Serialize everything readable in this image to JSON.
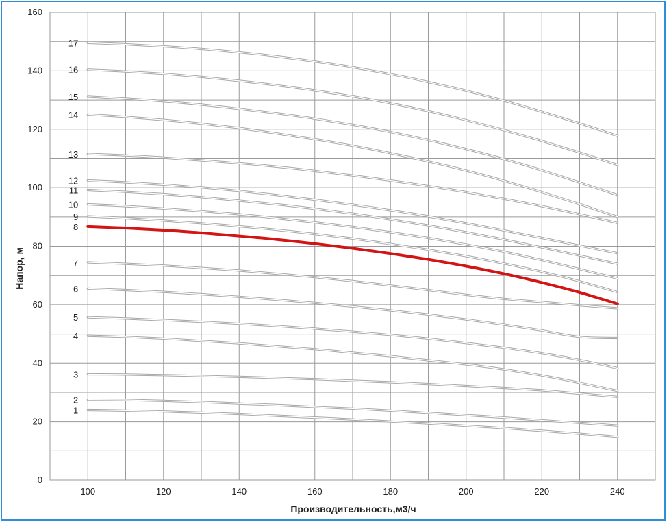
{
  "colors": {
    "frame": "#2f8fd6",
    "grid": "#9a9a9a",
    "curve": "#bdbdbd",
    "highlight": "#d21414",
    "text": "#222222"
  },
  "chart_data": {
    "type": "line",
    "title": "",
    "xlabel": "Производительность,м3/ч",
    "ylabel": "Напор, м",
    "xlim": [
      90,
      250
    ],
    "ylim": [
      0,
      160
    ],
    "x_ticks": [
      100,
      120,
      140,
      160,
      180,
      200,
      220,
      240
    ],
    "y_ticks": [
      0,
      20,
      40,
      60,
      80,
      100,
      120,
      140,
      160
    ],
    "grid": true,
    "legend": "none",
    "highlight_series": "8",
    "x": [
      100,
      110,
      120,
      130,
      140,
      150,
      160,
      170,
      180,
      190,
      200,
      210,
      220,
      230,
      240
    ],
    "series": [
      {
        "name": "1",
        "values": [
          24.0,
          23.8,
          23.5,
          23.1,
          22.6,
          22.0,
          21.4,
          20.8,
          20.1,
          19.4,
          18.6,
          17.8,
          16.9,
          15.9,
          14.8
        ]
      },
      {
        "name": "2",
        "values": [
          27.5,
          27.4,
          27.1,
          26.7,
          26.2,
          25.7,
          25.1,
          24.5,
          23.8,
          23.0,
          22.2,
          21.4,
          20.5,
          19.6,
          18.7
        ]
      },
      {
        "name": "3",
        "values": [
          36.2,
          36.1,
          35.9,
          35.6,
          35.3,
          34.9,
          34.5,
          34.0,
          33.5,
          32.9,
          32.2,
          31.5,
          30.7,
          29.6,
          28.5
        ]
      },
      {
        "name": "4",
        "values": [
          49.4,
          49.0,
          48.4,
          47.6,
          46.8,
          45.8,
          44.8,
          43.6,
          42.4,
          41.0,
          39.6,
          37.9,
          35.8,
          33.3,
          30.5
        ]
      },
      {
        "name": "5",
        "values": [
          55.7,
          55.3,
          54.8,
          54.2,
          53.5,
          52.7,
          51.8,
          50.8,
          49.7,
          48.4,
          46.9,
          45.3,
          43.4,
          41.1,
          38.3
        ]
      },
      {
        "name": "6",
        "values": [
          65.5,
          65.0,
          64.4,
          63.6,
          62.7,
          61.7,
          60.6,
          59.4,
          58.1,
          56.6,
          55.0,
          53.2,
          51.2,
          49.0,
          48.6
        ]
      },
      {
        "name": "7",
        "values": [
          74.5,
          74.0,
          73.4,
          72.6,
          71.7,
          70.6,
          69.4,
          68.1,
          66.6,
          65.0,
          63.4,
          62.0,
          60.9,
          59.8,
          58.8
        ]
      },
      {
        "name": "8",
        "values": [
          86.7,
          86.2,
          85.5,
          84.6,
          83.5,
          82.3,
          80.9,
          79.3,
          77.5,
          75.5,
          73.2,
          70.6,
          67.6,
          64.2,
          60.3
        ]
      },
      {
        "name": "9",
        "values": [
          90.2,
          89.6,
          88.8,
          87.9,
          86.8,
          85.6,
          84.2,
          82.6,
          80.8,
          78.8,
          76.6,
          74.1,
          71.3,
          68.0,
          64.3
        ]
      },
      {
        "name": "10",
        "values": [
          94.3,
          93.7,
          92.9,
          92.0,
          90.9,
          89.6,
          88.2,
          86.6,
          84.8,
          82.8,
          80.6,
          78.1,
          75.3,
          72.2,
          69.0
        ]
      },
      {
        "name": "11",
        "values": [
          99.2,
          98.6,
          97.8,
          96.8,
          95.6,
          94.3,
          92.8,
          91.1,
          89.2,
          87.1,
          84.8,
          82.3,
          79.6,
          76.8,
          74.0
        ]
      },
      {
        "name": "12",
        "values": [
          102.5,
          101.9,
          101.1,
          100.1,
          98.9,
          97.5,
          95.9,
          94.2,
          92.3,
          90.2,
          87.9,
          85.4,
          82.8,
          80.2,
          77.6
        ]
      },
      {
        "name": "13",
        "values": [
          111.5,
          111.0,
          110.3,
          109.4,
          108.4,
          107.2,
          105.8,
          104.2,
          102.5,
          100.6,
          98.5,
          96.2,
          93.7,
          90.9,
          88.0
        ]
      },
      {
        "name": "14",
        "values": [
          125.0,
          124.2,
          123.2,
          121.9,
          120.4,
          118.6,
          116.6,
          114.4,
          111.8,
          109.0,
          105.9,
          102.4,
          98.5,
          94.4,
          90.0
        ]
      },
      {
        "name": "15",
        "values": [
          131.2,
          130.5,
          129.6,
          128.4,
          127.0,
          125.4,
          123.6,
          121.5,
          119.1,
          116.3,
          113.2,
          109.8,
          106.0,
          101.8,
          97.5
        ]
      },
      {
        "name": "16",
        "values": [
          140.4,
          139.8,
          139.0,
          137.9,
          136.6,
          135.1,
          133.3,
          131.3,
          128.9,
          126.2,
          123.1,
          119.7,
          116.0,
          112.0,
          107.8
        ]
      },
      {
        "name": "17",
        "values": [
          149.6,
          149.1,
          148.4,
          147.5,
          146.3,
          144.9,
          143.2,
          141.2,
          138.9,
          136.2,
          133.2,
          129.8,
          126.0,
          122.0,
          117.8
        ]
      }
    ]
  }
}
